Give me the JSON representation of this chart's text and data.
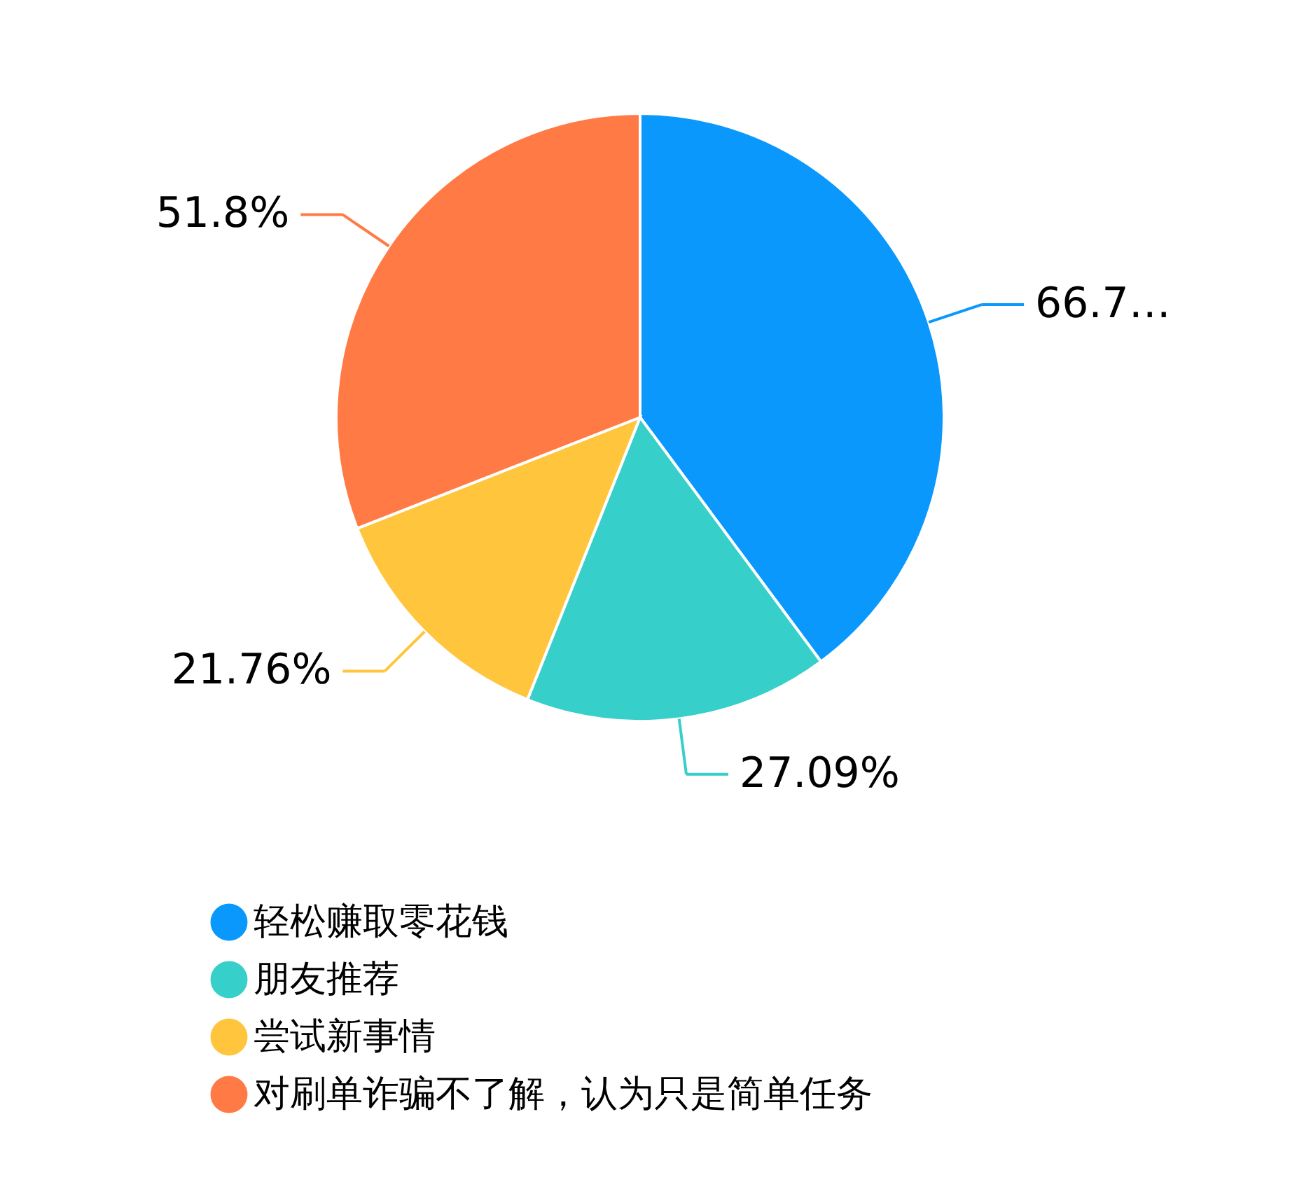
{
  "chart_data": {
    "type": "pie",
    "categories": [
      "轻松赚取零花钱",
      "朋友推荐",
      "尝试新事情",
      "对刷单诈骗不了解，认为只是简单任务"
    ],
    "values": [
      66.7,
      27.09,
      21.76,
      51.8
    ],
    "value_labels": [
      "66.7…",
      "27.09%",
      "21.76%",
      "51.8%"
    ],
    "colors": [
      "#0a98fd",
      "#36cfc9",
      "#ffc53d",
      "#ff7a45"
    ],
    "legend": "bottom"
  }
}
